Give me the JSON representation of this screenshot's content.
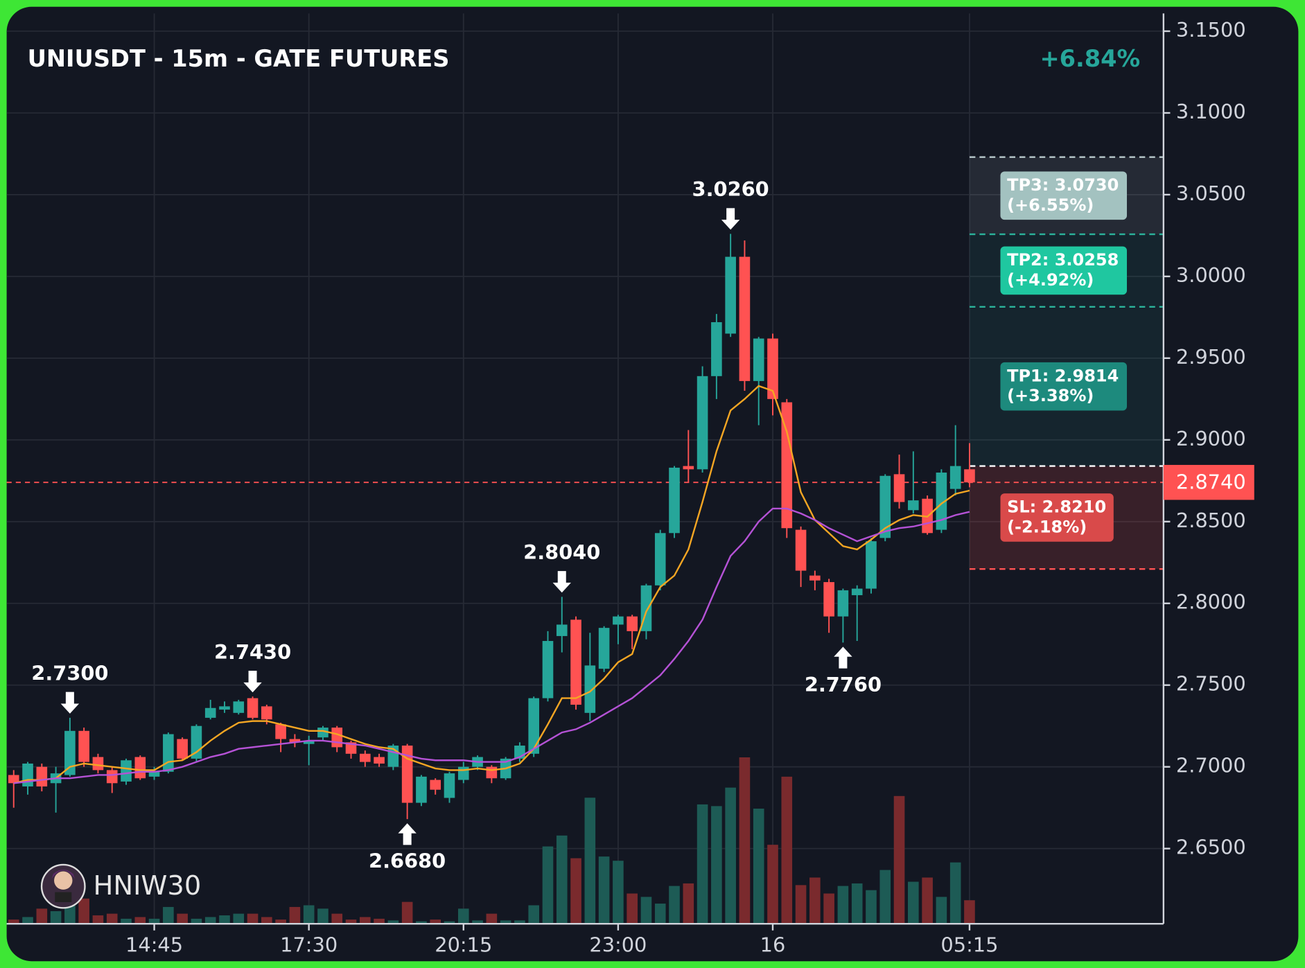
{
  "chart_data": {
    "type": "candlestick",
    "title": "UNIUSDT - 15m - GATE FUTURES",
    "change_label": "+6.84%",
    "watermark": "HNIW30",
    "up_color": "#26a69a",
    "down_color": "#ff5252",
    "volume_up_color": "#1d5b55",
    "volume_down_color": "#7a2a2d",
    "xlim": [
      -0.5,
      81.8
    ],
    "ylim": [
      2.604,
      3.169
    ],
    "xticks": [
      {
        "value": 10,
        "label": "14:45"
      },
      {
        "value": 21,
        "label": "17:30"
      },
      {
        "value": 32,
        "label": "20:15"
      },
      {
        "value": 43,
        "label": "23:00"
      },
      {
        "value": 54,
        "label": "16"
      },
      {
        "value": 68,
        "label": "05:15"
      }
    ],
    "yticks": [
      {
        "value": 2.65,
        "label": "2.6500"
      },
      {
        "value": 2.7,
        "label": "2.7000"
      },
      {
        "value": 2.75,
        "label": "2.7500"
      },
      {
        "value": 2.8,
        "label": "2.8000"
      },
      {
        "value": 2.85,
        "label": "2.8500"
      },
      {
        "value": 2.9,
        "label": "2.9000"
      },
      {
        "value": 2.95,
        "label": "2.9500"
      },
      {
        "value": 3.0,
        "label": "3.0000"
      },
      {
        "value": 3.05,
        "label": "3.0500"
      },
      {
        "value": 3.1,
        "label": "3.1000"
      },
      {
        "value": 3.15,
        "label": "3.1500"
      }
    ],
    "grid": true,
    "open": [
      2.695,
      2.688,
      2.7,
      2.69,
      2.695,
      2.722,
      2.706,
      2.698,
      2.691,
      2.706,
      2.694,
      2.697,
      2.717,
      2.705,
      2.73,
      2.735,
      2.733,
      2.742,
      2.737,
      2.726,
      2.717,
      2.714,
      2.718,
      2.724,
      2.715,
      2.708,
      2.706,
      2.7,
      2.713,
      2.678,
      2.692,
      2.681,
      2.692,
      2.7,
      2.7,
      2.693,
      2.705,
      2.708,
      2.742,
      2.78,
      2.79,
      2.733,
      2.76,
      2.787,
      2.792,
      2.783,
      2.811,
      2.843,
      2.884,
      2.882,
      2.939,
      2.965,
      3.012,
      2.936,
      2.962,
      2.923,
      2.845,
      2.817,
      2.813,
      2.792,
      2.805,
      2.809,
      2.84,
      2.879,
      2.857,
      2.864,
      2.845,
      2.87,
      2.882
    ],
    "high": [
      2.698,
      2.703,
      2.702,
      2.7,
      2.73,
      2.724,
      2.708,
      2.7,
      2.705,
      2.707,
      2.7,
      2.721,
      2.718,
      2.726,
      2.741,
      2.74,
      2.741,
      2.743,
      2.738,
      2.727,
      2.72,
      2.719,
      2.725,
      2.725,
      2.716,
      2.71,
      2.708,
      2.714,
      2.714,
      2.695,
      2.693,
      2.697,
      2.703,
      2.707,
      2.701,
      2.706,
      2.715,
      2.743,
      2.783,
      2.804,
      2.792,
      2.782,
      2.786,
      2.793,
      2.793,
      2.812,
      2.845,
      2.884,
      2.906,
      2.945,
      2.977,
      3.026,
      3.022,
      2.963,
      2.965,
      2.925,
      2.847,
      2.82,
      2.815,
      2.809,
      2.811,
      2.84,
      2.879,
      2.891,
      2.893,
      2.866,
      2.882,
      2.909,
      2.898
    ],
    "low": [
      2.675,
      2.683,
      2.685,
      2.672,
      2.694,
      2.7,
      2.696,
      2.684,
      2.689,
      2.692,
      2.692,
      2.696,
      2.704,
      2.703,
      2.729,
      2.733,
      2.732,
      2.729,
      2.726,
      2.709,
      2.712,
      2.701,
      2.716,
      2.709,
      2.705,
      2.7,
      2.7,
      2.698,
      2.668,
      2.676,
      2.683,
      2.678,
      2.69,
      2.698,
      2.69,
      2.692,
      2.703,
      2.706,
      2.74,
      2.77,
      2.735,
      2.728,
      2.758,
      2.775,
      2.772,
      2.778,
      2.808,
      2.84,
      2.874,
      2.88,
      2.925,
      2.963,
      2.93,
      2.909,
      2.915,
      2.84,
      2.81,
      2.808,
      2.782,
      2.776,
      2.777,
      2.806,
      2.838,
      2.858,
      2.855,
      2.842,
      2.843,
      2.866,
      2.871
    ],
    "close": [
      2.69,
      2.702,
      2.688,
      2.696,
      2.722,
      2.703,
      2.698,
      2.69,
      2.704,
      2.693,
      2.697,
      2.72,
      2.705,
      2.725,
      2.736,
      2.737,
      2.74,
      2.73,
      2.729,
      2.717,
      2.715,
      2.716,
      2.724,
      2.712,
      2.708,
      2.703,
      2.702,
      2.713,
      2.678,
      2.694,
      2.686,
      2.696,
      2.7,
      2.706,
      2.693,
      2.705,
      2.713,
      2.742,
      2.777,
      2.787,
      2.738,
      2.762,
      2.785,
      2.792,
      2.783,
      2.811,
      2.843,
      2.883,
      2.882,
      2.939,
      2.972,
      3.012,
      2.936,
      2.962,
      2.925,
      2.846,
      2.82,
      2.814,
      2.792,
      2.808,
      2.809,
      2.838,
      2.878,
      2.862,
      2.863,
      2.843,
      2.88,
      2.884,
      2.874
    ],
    "volume": [
      5,
      8,
      18,
      15,
      28,
      30,
      10,
      12,
      6,
      8,
      6,
      20,
      12,
      6,
      8,
      10,
      12,
      12,
      8,
      5,
      20,
      22,
      18,
      12,
      5,
      8,
      6,
      4,
      26,
      3,
      5,
      3,
      18,
      4,
      12,
      4,
      4,
      22,
      92,
      105,
      78,
      150,
      80,
      75,
      36,
      32,
      24,
      45,
      48,
      142,
      140,
      162,
      198,
      137,
      94,
      175,
      46,
      55,
      36,
      45,
      48,
      40,
      64,
      152,
      50,
      55,
      32,
      73,
      28
    ],
    "ma_fast": {
      "color": "#f5a623",
      "values": [
        2.69,
        2.692,
        2.692,
        2.693,
        2.7,
        2.702,
        2.701,
        2.7,
        2.699,
        2.698,
        2.698,
        2.703,
        2.704,
        2.709,
        2.716,
        2.722,
        2.727,
        2.728,
        2.728,
        2.726,
        2.724,
        2.722,
        2.722,
        2.72,
        2.717,
        2.714,
        2.712,
        2.711,
        2.705,
        2.702,
        2.699,
        2.698,
        2.698,
        2.699,
        2.698,
        2.699,
        2.702,
        2.711,
        2.726,
        2.742,
        2.742,
        2.746,
        2.754,
        2.764,
        2.769,
        2.795,
        2.81,
        2.817,
        2.833,
        2.862,
        2.893,
        2.918,
        2.925,
        2.933,
        2.93,
        2.905,
        2.868,
        2.851,
        2.843,
        2.835,
        2.833,
        2.839,
        2.846,
        2.851,
        2.854,
        2.853,
        2.861,
        2.867,
        2.869
      ]
    },
    "ma_slow": {
      "color": "#b552d6",
      "values": [
        2.69,
        2.691,
        2.692,
        2.693,
        2.693,
        2.694,
        2.695,
        2.695,
        2.696,
        2.697,
        2.697,
        2.698,
        2.7,
        2.703,
        2.706,
        2.708,
        2.711,
        2.712,
        2.713,
        2.714,
        2.715,
        2.716,
        2.716,
        2.715,
        2.714,
        2.713,
        2.711,
        2.709,
        2.707,
        2.705,
        2.704,
        2.704,
        2.704,
        2.703,
        2.703,
        2.703,
        2.706,
        2.711,
        2.716,
        2.721,
        2.723,
        2.727,
        2.732,
        2.737,
        2.742,
        2.749,
        2.756,
        2.766,
        2.777,
        2.79,
        2.81,
        2.829,
        2.838,
        2.85,
        2.858,
        2.858,
        2.855,
        2.851,
        2.846,
        2.842,
        2.838,
        2.841,
        2.844,
        2.846,
        2.847,
        2.849,
        2.851,
        2.854,
        2.856
      ]
    },
    "markers": [
      {
        "x": 4,
        "value": 2.73,
        "label": "2.7300",
        "direction": "down"
      },
      {
        "x": 17,
        "value": 2.743,
        "label": "2.7430",
        "direction": "down"
      },
      {
        "x": 28,
        "value": 2.668,
        "label": "2.6680",
        "direction": "up"
      },
      {
        "x": 39,
        "value": 2.804,
        "label": "2.8040",
        "direction": "down"
      },
      {
        "x": 51,
        "value": 3.026,
        "label": "3.0260",
        "direction": "down"
      },
      {
        "x": 59,
        "value": 2.776,
        "label": "2.7760",
        "direction": "up"
      }
    ],
    "entry": 2.884,
    "levels": [
      {
        "label": "TP3: 3.0730",
        "pct": "(+6.55%)",
        "value": 3.073,
        "line_color": "#b9c9cc",
        "box_color": "#a3c2c0"
      },
      {
        "label": "TP2: 3.0258",
        "pct": "(+4.92%)",
        "value": 3.0258,
        "line_color": "#2bb39b",
        "box_color": "#1fc7a0"
      },
      {
        "label": "TP1: 2.9814",
        "pct": "(+3.38%)",
        "value": 2.9814,
        "line_color": "#2bb39b",
        "box_color": "#1d8a7d"
      },
      {
        "label": "SL: 2.8210",
        "pct": "(-2.18%)",
        "value": 2.821,
        "line_color": "#ff5252",
        "box_color": "#d94a4a"
      }
    ],
    "current": {
      "value": 2.874,
      "label": "2.8740",
      "color": "#ff5252"
    }
  }
}
